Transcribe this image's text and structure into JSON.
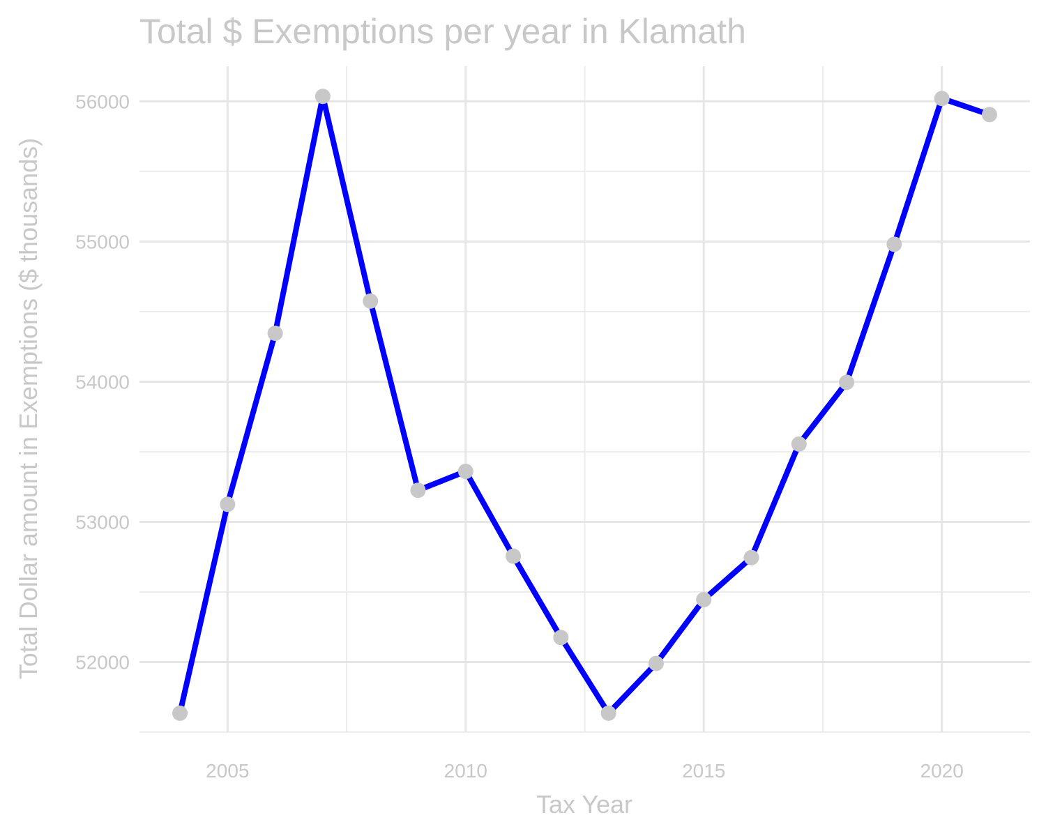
{
  "chart_data": {
    "type": "line",
    "title": "Total $ Exemptions per year in Klamath",
    "xlabel": "Tax Year",
    "ylabel": "Total Dollar amount in Exemptions ($ thousands)",
    "xlim": [
      2003.15,
      2021.85
    ],
    "ylim": [
      51500,
      56250
    ],
    "x_ticks": [
      2005,
      2010,
      2015,
      2020
    ],
    "x_tick_labels": [
      "2005",
      "2010",
      "2015",
      "2020"
    ],
    "y_ticks": [
      52000,
      53000,
      54000,
      55000,
      56000
    ],
    "y_tick_labels": [
      "52000",
      "53000",
      "54000",
      "55000",
      "56000"
    ],
    "x_minor_ticks": [
      2007.5,
      2012.5,
      2017.5
    ],
    "y_minor_ticks": [
      51500,
      52500,
      53500,
      54500,
      55500
    ],
    "grid": true,
    "line_color": "#0000ff",
    "point_color": "#c8c8c8",
    "x": [
      2004,
      2005,
      2006,
      2007,
      2008,
      2009,
      2010,
      2011,
      2012,
      2013,
      2014,
      2015,
      2016,
      2017,
      2018,
      2019,
      2020,
      2021
    ],
    "values": [
      51635,
      53125,
      54345,
      56035,
      54575,
      53225,
      53360,
      52755,
      52175,
      51635,
      51990,
      52445,
      52745,
      53555,
      53995,
      54980,
      56020,
      55905
    ]
  }
}
